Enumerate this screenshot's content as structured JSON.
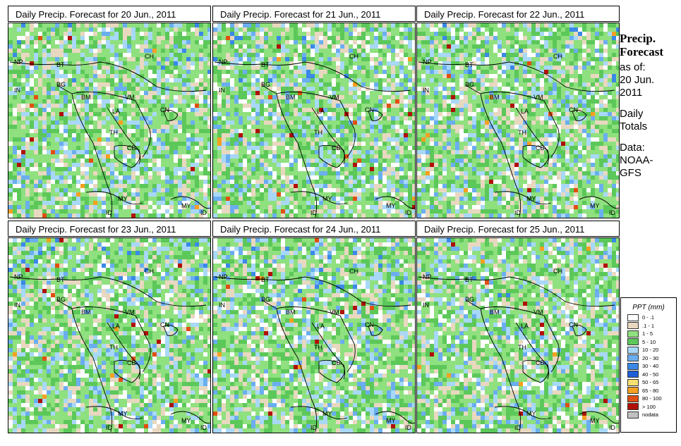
{
  "panels": [
    {
      "title": "Daily Precip. Forecast for  20 Jun., 2011"
    },
    {
      "title": "Daily Precip. Forecast for  21 Jun., 2011"
    },
    {
      "title": "Daily Precip. Forecast for  22 Jun., 2011"
    },
    {
      "title": "Daily Precip. Forecast for  23 Jun., 2011"
    },
    {
      "title": "Daily Precip. Forecast for  24 Jun., 2011"
    },
    {
      "title": "Daily Precip. Forecast for  25 Jun., 2011"
    }
  ],
  "map_labels": [
    "NP",
    "BT",
    "BG",
    "IN",
    "BM",
    "CH",
    "VM",
    "LA",
    "TH",
    "CB",
    "CN",
    "MY",
    "ID",
    "MY",
    "ID"
  ],
  "sidebar": {
    "line1": "Precip.",
    "line2": "Forecast",
    "line3": "as of:",
    "line4": "20 Jun.",
    "line5": "2011",
    "line6": "Daily",
    "line7": "Totals",
    "line8": "Data:",
    "line9": "NOAA-",
    "line10": "GFS"
  },
  "legend": {
    "title": "PPT (mm)",
    "items": [
      {
        "label": "0 - .1",
        "color": "#ffffff"
      },
      {
        "label": ".1 - 1",
        "color": "#e8d8c0"
      },
      {
        "label": "1 - 5",
        "color": "#8fe07e"
      },
      {
        "label": "5 - 10",
        "color": "#5cc85a"
      },
      {
        "label": "10 - 20",
        "color": "#a8d8f8"
      },
      {
        "label": "20 - 30",
        "color": "#6aaef0"
      },
      {
        "label": "30 - 40",
        "color": "#3a88e8"
      },
      {
        "label": "40 - 50",
        "color": "#1e5fd6"
      },
      {
        "label": "50 - 65",
        "color": "#f8e070"
      },
      {
        "label": "65 - 80",
        "color": "#f5a020"
      },
      {
        "label": "80 - 100",
        "color": "#e05010"
      },
      {
        "label": "> 100",
        "color": "#b01008"
      },
      {
        "label": "nodata",
        "color": "#c0c0c0"
      }
    ]
  }
}
